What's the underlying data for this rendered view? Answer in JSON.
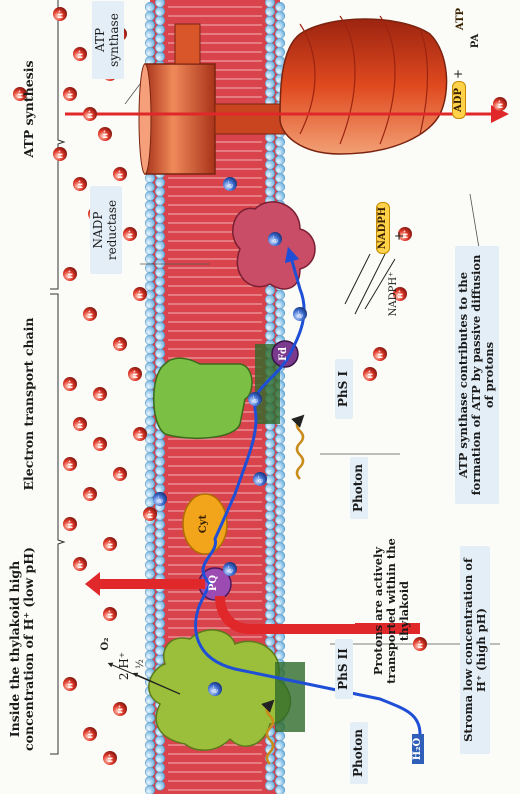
{
  "headers": {
    "thylakoid": "Inside the thylakoid high concentration of H⁺ (low pH)",
    "etc": "Electron transport chain",
    "atp_synthesis": "ATP synthesis"
  },
  "labels": {
    "photon_1": "Photon",
    "photon_2": "Photon",
    "phs2": "PhS II",
    "phs1": "PhS I",
    "protons_transported": "Protons are actively transported within the thylakoid",
    "stroma": "Stroma low concentration of H⁺ (high pH)",
    "nadp_reductase": "NADP reductase",
    "atp_synthase": "ATP synthase",
    "atp_contrib": "ATP synthase contributes to the formation of ATP by passive diffusion of protons"
  },
  "molecules": {
    "h2o": "H₂O",
    "two_h": "2 H⁺",
    "half": "½",
    "o2": "O₂",
    "pq": "PQ",
    "cyt": "Cyt",
    "fd": "Fd",
    "nadph": "NADPH",
    "nadp_plus": "NADPH⁺",
    "plus_1": "+",
    "plus_2": "+",
    "adp": "ADP",
    "pa": "PA",
    "atp": "ATP",
    "electron": "e⁻",
    "proton": "H⁺"
  },
  "colors": {
    "membrane_head": "#7fbfe8",
    "membrane_core": "#d9434c",
    "phs2": "#9bbf3a",
    "cyt": "#f2a51a",
    "phs1": "#7bbf45",
    "nadp_reductase": "#c94d66",
    "atp_synthase": "#e8552a",
    "electron_path": "#1f4fd6",
    "proton_arrow": "#e0272a",
    "label_box": "#e3eef6"
  }
}
